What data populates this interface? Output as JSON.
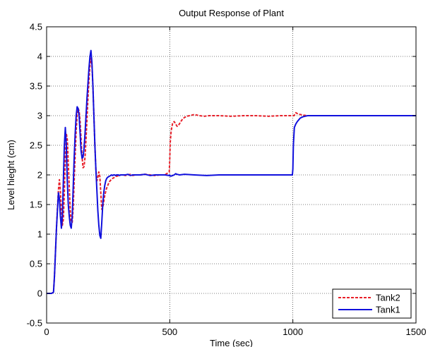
{
  "chart_data": {
    "type": "line",
    "title": "Output Response of Plant",
    "xlabel": "Time (sec)",
    "ylabel": "Level hieght (cm)",
    "xlim": [
      0,
      1500
    ],
    "ylim": [
      -0.5,
      4.5
    ],
    "xticks": [
      0,
      500,
      1000,
      1500
    ],
    "yticks": [
      -0.5,
      0,
      0.5,
      1,
      1.5,
      2,
      2.5,
      3,
      3.5,
      4,
      4.5
    ],
    "grid": true,
    "legend_position": "bottom-right",
    "series": [
      {
        "name": "Tank2",
        "color": "#e8202a",
        "style": "dashed",
        "x": [
          0,
          10,
          20,
          28,
          32,
          36,
          40,
          44,
          48,
          52,
          56,
          60,
          64,
          68,
          72,
          76,
          80,
          84,
          88,
          92,
          96,
          100,
          104,
          108,
          112,
          116,
          120,
          124,
          128,
          132,
          136,
          140,
          144,
          148,
          152,
          156,
          160,
          164,
          168,
          172,
          176,
          180,
          184,
          188,
          192,
          196,
          200,
          204,
          208,
          212,
          216,
          220,
          224,
          228,
          232,
          236,
          240,
          244,
          248,
          252,
          256,
          260,
          264,
          268,
          272,
          276,
          280,
          284,
          288,
          292,
          296,
          300,
          310,
          320,
          330,
          340,
          350,
          360,
          380,
          400,
          420,
          440,
          460,
          480,
          498,
          500,
          502,
          506,
          512,
          518,
          524,
          530,
          536,
          542,
          548,
          554,
          560,
          570,
          580,
          590,
          600,
          620,
          640,
          660,
          700,
          750,
          800,
          850,
          900,
          950,
          1000,
          1004,
          1008,
          1012,
          1016,
          1020,
          1030,
          1040,
          1060,
          1080,
          1100,
          1150,
          1200,
          1250,
          1300,
          1350,
          1400,
          1450,
          1500
        ],
        "y": [
          0,
          0,
          0,
          0.02,
          0.3,
          0.7,
          1.1,
          1.45,
          1.75,
          1.92,
          1.72,
          1.4,
          1.15,
          1.25,
          1.7,
          2.3,
          2.7,
          2.6,
          2.2,
          1.8,
          1.4,
          1.2,
          1.2,
          1.45,
          1.9,
          2.35,
          2.75,
          3.0,
          3.12,
          3.08,
          2.9,
          2.6,
          2.3,
          2.12,
          2.14,
          2.3,
          2.6,
          2.95,
          3.3,
          3.6,
          3.85,
          3.97,
          3.85,
          3.5,
          3.0,
          2.5,
          2.1,
          1.9,
          1.95,
          2.05,
          1.98,
          1.7,
          1.42,
          1.45,
          1.55,
          1.65,
          1.72,
          1.78,
          1.82,
          1.86,
          1.89,
          1.91,
          1.93,
          1.94,
          1.95,
          1.96,
          1.97,
          1.98,
          1.98,
          1.99,
          1.99,
          2.0,
          2.0,
          1.99,
          2.0,
          2.01,
          1.99,
          2.0,
          2.0,
          2.01,
          2.0,
          1.99,
          2.0,
          2.0,
          2.05,
          2.25,
          2.55,
          2.75,
          2.88,
          2.9,
          2.86,
          2.82,
          2.84,
          2.88,
          2.92,
          2.95,
          2.97,
          2.99,
          3.0,
          3.01,
          3.02,
          3.0,
          2.99,
          3.0,
          3.0,
          2.99,
          3.0,
          3.0,
          2.99,
          3.0,
          3.0,
          3.0,
          3.02,
          3.05,
          3.04,
          3.03,
          3.02,
          3.01,
          3.0,
          3.0,
          3.0,
          3.0,
          3.0,
          3.0,
          3.0,
          3.0,
          3.0,
          3.0,
          3.0
        ]
      },
      {
        "name": "Tank1",
        "color": "#1010dd",
        "style": "solid",
        "x": [
          0,
          10,
          20,
          28,
          32,
          36,
          40,
          44,
          48,
          52,
          56,
          60,
          64,
          68,
          72,
          76,
          80,
          84,
          88,
          92,
          96,
          100,
          104,
          108,
          112,
          116,
          120,
          124,
          128,
          132,
          136,
          140,
          144,
          148,
          152,
          156,
          160,
          164,
          168,
          172,
          176,
          180,
          184,
          188,
          192,
          196,
          200,
          204,
          208,
          212,
          216,
          220,
          224,
          228,
          232,
          236,
          240,
          244,
          248,
          252,
          256,
          260,
          264,
          268,
          272,
          276,
          280,
          284,
          288,
          292,
          296,
          300,
          310,
          320,
          330,
          340,
          350,
          360,
          380,
          400,
          420,
          440,
          460,
          480,
          498,
          500,
          502,
          506,
          512,
          518,
          524,
          530,
          540,
          560,
          600,
          650,
          700,
          750,
          800,
          850,
          900,
          950,
          998,
          1000,
          1002,
          1006,
          1012,
          1018,
          1024,
          1030,
          1040,
          1050,
          1060,
          1070,
          1080,
          1100,
          1150,
          1200,
          1250,
          1300,
          1350,
          1400,
          1450,
          1500
        ],
        "y": [
          0,
          0,
          0,
          0.02,
          0.3,
          0.7,
          1.1,
          1.4,
          1.7,
          1.6,
          1.3,
          1.1,
          1.3,
          1.9,
          2.5,
          2.8,
          2.5,
          1.9,
          1.5,
          1.3,
          1.15,
          1.1,
          1.3,
          1.8,
          2.3,
          2.7,
          3.0,
          3.15,
          3.12,
          3.0,
          2.7,
          2.4,
          2.28,
          2.3,
          2.45,
          2.7,
          3.0,
          3.3,
          3.55,
          3.8,
          4.0,
          4.1,
          3.9,
          3.5,
          3.0,
          2.5,
          2.1,
          1.75,
          1.4,
          1.15,
          0.98,
          0.93,
          1.2,
          1.5,
          1.7,
          1.82,
          1.9,
          1.94,
          1.96,
          1.97,
          1.98,
          1.99,
          2.0,
          1.99,
          2.0,
          2.0,
          1.99,
          2.0,
          2.0,
          2.0,
          1.99,
          2.0,
          2.0,
          2.0,
          2.01,
          1.99,
          2.0,
          2.0,
          2.0,
          2.01,
          1.99,
          2.0,
          2.0,
          2.0,
          1.99,
          2.0,
          1.98,
          1.98,
          1.99,
          2.0,
          2.02,
          2.01,
          2.0,
          2.01,
          2.0,
          1.99,
          2.0,
          2.0,
          2.0,
          2.0,
          2.0,
          2.0,
          2.0,
          2.1,
          2.5,
          2.8,
          2.86,
          2.9,
          2.93,
          2.96,
          2.98,
          2.99,
          3.0,
          3.0,
          3.0,
          3.0,
          3.0,
          3.0,
          3.0,
          3.0,
          3.0,
          3.0,
          3.0,
          3.0
        ]
      }
    ]
  }
}
